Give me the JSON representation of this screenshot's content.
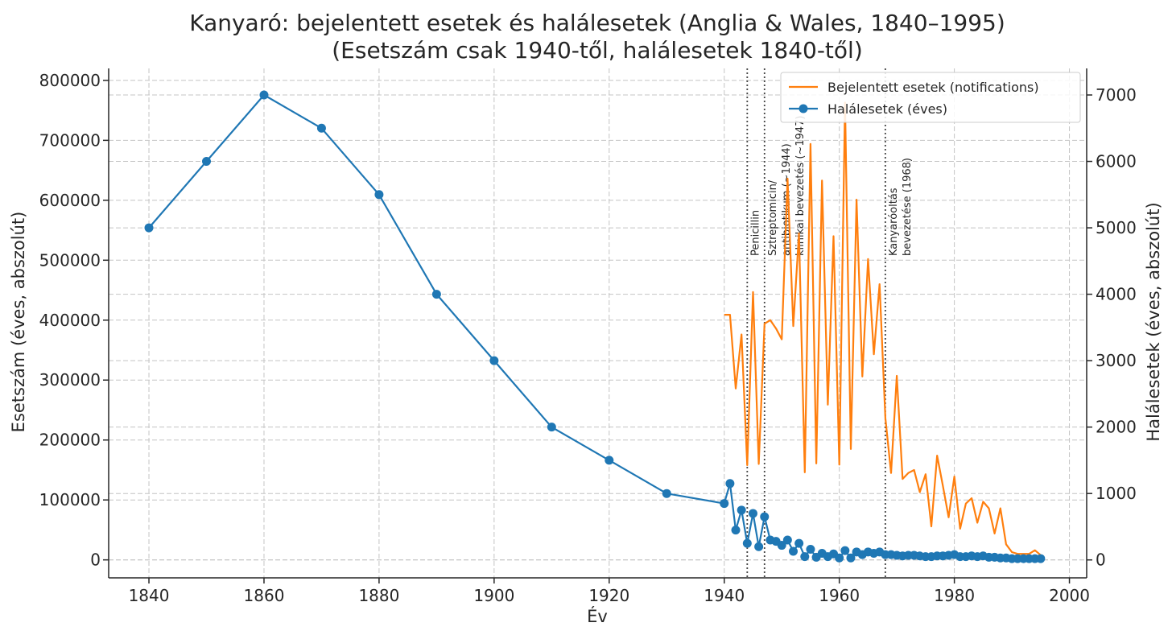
{
  "chart_data": {
    "type": "line",
    "title": "Kanyaró: bejelentett esetek és halálesetek (Anglia & Wales, 1840–1995)",
    "subtitle": "(Esetszám csak 1940-től, halálesetek 1840-től)",
    "xlabel": "Év",
    "ylabel_left": "Esetszám (éves, abszolút)",
    "ylabel_right": "Halálesetek (éves, abszolút)",
    "xlim": [
      1833,
      2003
    ],
    "ylim_left": [
      -30000,
      820000
    ],
    "ylim_right": [
      -270,
      7400
    ],
    "x_ticks": [
      1840,
      1860,
      1880,
      1900,
      1920,
      1940,
      1960,
      1980,
      2000
    ],
    "y_left_ticks": [
      0,
      100000,
      200000,
      300000,
      400000,
      500000,
      600000,
      700000,
      800000
    ],
    "y_right_ticks": [
      0,
      1000,
      2000,
      3000,
      4000,
      5000,
      6000,
      7000
    ],
    "grid": true,
    "legend_position": "top-right",
    "series": [
      {
        "name": "Bejelentett esetek (notifications)",
        "axis": "left",
        "color": "#ff7f0e",
        "x": [
          1940,
          1941,
          1942,
          1943,
          1944,
          1945,
          1946,
          1947,
          1948,
          1949,
          1950,
          1951,
          1952,
          1953,
          1954,
          1955,
          1956,
          1957,
          1958,
          1959,
          1960,
          1961,
          1962,
          1963,
          1964,
          1965,
          1966,
          1967,
          1968,
          1969,
          1970,
          1971,
          1972,
          1973,
          1974,
          1975,
          1976,
          1977,
          1978,
          1979,
          1980,
          1981,
          1982,
          1983,
          1984,
          1985,
          1986,
          1987,
          1988,
          1989,
          1990,
          1991,
          1992,
          1993,
          1994,
          1995
        ],
        "values": [
          409000,
          409000,
          286000,
          376000,
          158000,
          447000,
          160000,
          394000,
          400000,
          386000,
          368000,
          636000,
          390000,
          545000,
          146000,
          694000,
          161000,
          633000,
          259000,
          540000,
          159000,
          763000,
          185000,
          601000,
          306000,
          502000,
          343000,
          460000,
          237000,
          145000,
          307000,
          135000,
          145000,
          150000,
          113000,
          143000,
          56000,
          174000,
          124000,
          71000,
          139000,
          52000,
          94000,
          103000,
          62000,
          97000,
          86000,
          44000,
          86000,
          26000,
          13000,
          10000,
          10000,
          10000,
          16000,
          8000
        ]
      },
      {
        "name": "Halálesetek (éves)",
        "axis": "right",
        "color": "#1f77b4",
        "x": [
          1840,
          1850,
          1860,
          1870,
          1880,
          1890,
          1900,
          1910,
          1920,
          1930,
          1940,
          1941,
          1942,
          1943,
          1944,
          1945,
          1946,
          1947,
          1948,
          1949,
          1950,
          1951,
          1952,
          1953,
          1954,
          1955,
          1956,
          1957,
          1958,
          1959,
          1960,
          1961,
          1962,
          1963,
          1964,
          1965,
          1966,
          1967,
          1968,
          1969,
          1970,
          1971,
          1972,
          1973,
          1974,
          1975,
          1976,
          1977,
          1978,
          1979,
          1980,
          1981,
          1982,
          1983,
          1984,
          1985,
          1986,
          1987,
          1988,
          1989,
          1990,
          1991,
          1992,
          1993,
          1994,
          1995
        ],
        "values": [
          5000,
          6000,
          7000,
          6500,
          5500,
          4000,
          3000,
          2000,
          1500,
          1000,
          850,
          1150,
          450,
          750,
          250,
          700,
          200,
          650,
          300,
          280,
          220,
          300,
          130,
          250,
          50,
          160,
          40,
          100,
          50,
          90,
          30,
          140,
          30,
          120,
          80,
          120,
          100,
          120,
          80,
          80,
          70,
          60,
          70,
          70,
          60,
          50,
          50,
          60,
          60,
          70,
          80,
          50,
          50,
          60,
          50,
          60,
          40,
          40,
          30,
          30,
          20,
          20,
          20,
          20,
          20,
          20
        ]
      }
    ],
    "annotations": [
      {
        "x": 1944,
        "lines": [
          "Penicillin"
        ]
      },
      {
        "x": 1947,
        "lines": [
          "Sztreptomicin/",
          "antibiotikum (~1944)",
          "klinikai bevezetés (~1947)"
        ]
      },
      {
        "x": 1968,
        "lines": [
          "Kanyaróoltás",
          "bevezetése (1968)"
        ]
      }
    ]
  }
}
